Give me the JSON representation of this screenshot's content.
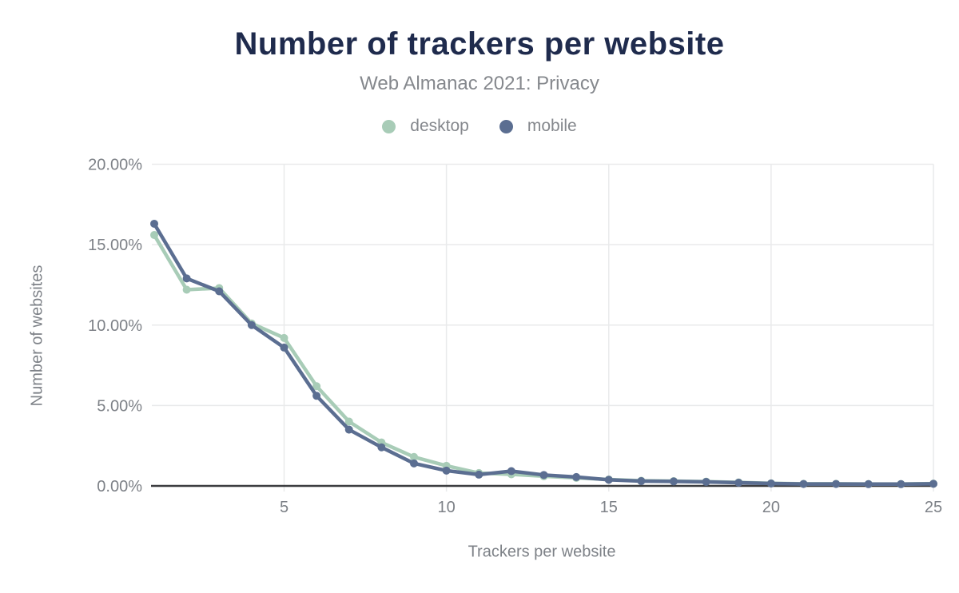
{
  "header": {
    "title": "Number of trackers per website",
    "subtitle": "Web Almanac 2021: Privacy"
  },
  "legend": {
    "items": [
      {
        "label": "desktop",
        "color": "#a8ccb7"
      },
      {
        "label": "mobile",
        "color": "#5b6e91"
      }
    ]
  },
  "chart_data": {
    "type": "line",
    "title": "Number of trackers per website",
    "subtitle": "Web Almanac 2021: Privacy",
    "xlabel": "Trackers per website",
    "ylabel": "Number of websites",
    "x": [
      1,
      2,
      3,
      4,
      5,
      6,
      7,
      8,
      9,
      10,
      11,
      12,
      13,
      14,
      15,
      16,
      17,
      18,
      19,
      20,
      21,
      22,
      23,
      24,
      25
    ],
    "series": [
      {
        "name": "desktop",
        "color": "#a8ccb7",
        "values": [
          15.6,
          12.2,
          12.3,
          10.1,
          9.2,
          6.2,
          4.0,
          2.7,
          1.8,
          1.25,
          0.8,
          0.72,
          0.6,
          0.5,
          0.4,
          0.32,
          0.3,
          0.27,
          0.22,
          0.16,
          0.13,
          0.13,
          0.12,
          0.12,
          0.14
        ]
      },
      {
        "name": "mobile",
        "color": "#5b6e91",
        "values": [
          16.3,
          12.9,
          12.1,
          10.0,
          8.6,
          5.6,
          3.5,
          2.4,
          1.4,
          0.95,
          0.7,
          0.92,
          0.68,
          0.55,
          0.38,
          0.3,
          0.28,
          0.25,
          0.2,
          0.15,
          0.12,
          0.12,
          0.11,
          0.11,
          0.13
        ]
      }
    ],
    "xlim": [
      1,
      25
    ],
    "ylim": [
      0,
      20
    ],
    "x_ticks": [
      5,
      10,
      15,
      20,
      25
    ],
    "y_ticks": [
      0,
      5,
      10,
      15,
      20
    ],
    "y_tick_suffix": "%",
    "y_tick_decimals": 2,
    "grid": true,
    "legend_position": "top"
  },
  "colors": {
    "background": "#ffffff",
    "title": "#1f2b4d",
    "subtitle": "#85888d",
    "axis_text": "#7d8187",
    "gridline": "#e9eaeb",
    "axis_line": "#3b3c3f"
  }
}
